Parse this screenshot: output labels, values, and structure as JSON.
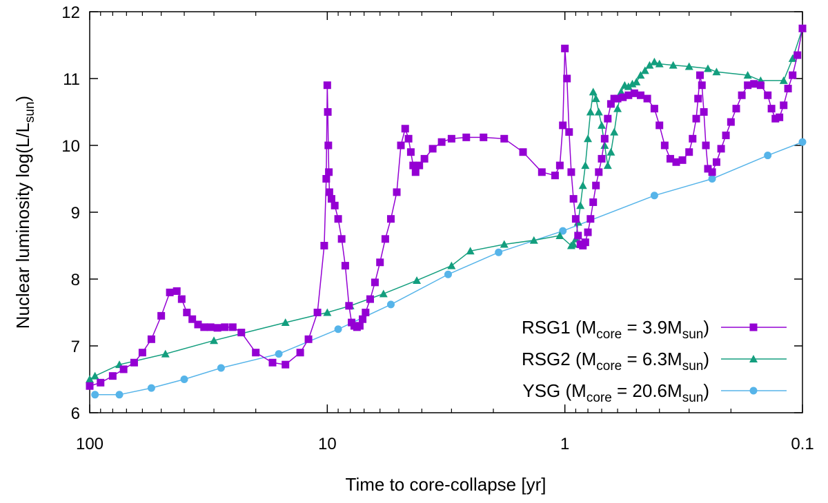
{
  "chart_data": {
    "type": "line",
    "xscale": "log",
    "x_reversed": true,
    "xlabel": "Time to core-collapse [yr]",
    "ylabel": {
      "main": "Nuclear luminosity  log(L/L",
      "sub": "sun",
      "close": ")"
    },
    "xlim": [
      100,
      0.1
    ],
    "ylim": [
      6,
      12
    ],
    "xticks": [
      {
        "value": 100,
        "label": "100"
      },
      {
        "value": 10,
        "label": "10"
      },
      {
        "value": 1,
        "label": "1"
      },
      {
        "value": 0.1,
        "label": "0.1"
      }
    ],
    "yticks": [
      {
        "value": 6,
        "label": "6"
      },
      {
        "value": 7,
        "label": "7"
      },
      {
        "value": 8,
        "label": "8"
      },
      {
        "value": 9,
        "label": "9"
      },
      {
        "value": 10,
        "label": "10"
      },
      {
        "value": 11,
        "label": "11"
      },
      {
        "value": 12,
        "label": "12"
      }
    ],
    "legend_position": "bottom-right",
    "series": [
      {
        "name": "RSG1",
        "legend": {
          "pre": "RSG1 (M",
          "sub1": "core",
          "mid": " = 3.9M",
          "sub2": "sun",
          "post": ")"
        },
        "color": "#9400d3",
        "marker": "square",
        "x": [
          100,
          90,
          80,
          72,
          65,
          60,
          55,
          50,
          46,
          43,
          41,
          39,
          37,
          35,
          33,
          31,
          29,
          27,
          25,
          23,
          20,
          17,
          15,
          13,
          12,
          11,
          10.3,
          10.1,
          10,
          9.95,
          9.9,
          9.85,
          9.8,
          9.6,
          9.3,
          9.0,
          8.7,
          8.4,
          8.1,
          7.9,
          7.7,
          7.5,
          7.3,
          7.1,
          6.9,
          6.6,
          6.3,
          6.0,
          5.7,
          5.4,
          5.1,
          4.9,
          4.7,
          4.55,
          4.45,
          4.35,
          4.25,
          4.1,
          3.9,
          3.6,
          3.3,
          3.0,
          2.6,
          2.2,
          1.8,
          1.5,
          1.25,
          1.1,
          1.05,
          1.02,
          1.0,
          0.98,
          0.96,
          0.94,
          0.92,
          0.9,
          0.88,
          0.86,
          0.84,
          0.82,
          0.8,
          0.78,
          0.76,
          0.74,
          0.72,
          0.7,
          0.68,
          0.66,
          0.64,
          0.62,
          0.6,
          0.57,
          0.54,
          0.51,
          0.48,
          0.45,
          0.42,
          0.4,
          0.38,
          0.36,
          0.34,
          0.32,
          0.3,
          0.29,
          0.28,
          0.275,
          0.27,
          0.265,
          0.26,
          0.255,
          0.25,
          0.24,
          0.23,
          0.22,
          0.21,
          0.2,
          0.19,
          0.18,
          0.17,
          0.16,
          0.15,
          0.14,
          0.135,
          0.13,
          0.125,
          0.12,
          0.115,
          0.11,
          0.105,
          0.1
        ],
        "y": [
          6.4,
          6.45,
          6.55,
          6.65,
          6.75,
          6.9,
          7.1,
          7.45,
          7.8,
          7.82,
          7.7,
          7.5,
          7.4,
          7.32,
          7.28,
          7.28,
          7.27,
          7.28,
          7.28,
          7.2,
          6.9,
          6.75,
          6.72,
          6.9,
          7.1,
          7.5,
          8.5,
          9.5,
          10.9,
          10.5,
          10.0,
          9.6,
          9.3,
          9.2,
          9.1,
          8.9,
          8.6,
          8.2,
          7.6,
          7.35,
          7.3,
          7.28,
          7.3,
          7.4,
          7.5,
          7.7,
          7.95,
          8.25,
          8.6,
          8.9,
          9.3,
          10.0,
          10.25,
          10.1,
          9.9,
          9.7,
          9.6,
          9.7,
          9.8,
          9.95,
          10.05,
          10.1,
          10.12,
          10.12,
          10.1,
          9.9,
          9.6,
          9.55,
          9.7,
          10.3,
          11.45,
          11.0,
          10.2,
          9.6,
          9.2,
          8.9,
          8.65,
          8.52,
          8.5,
          8.55,
          8.7,
          8.9,
          9.15,
          9.4,
          9.6,
          9.8,
          10.1,
          10.4,
          10.62,
          10.7,
          10.7,
          10.72,
          10.75,
          10.78,
          10.75,
          10.7,
          10.55,
          10.3,
          10.0,
          9.8,
          9.75,
          9.78,
          9.9,
          10.1,
          10.4,
          10.7,
          11.05,
          10.9,
          10.5,
          10.0,
          9.65,
          9.6,
          9.75,
          9.95,
          10.15,
          10.35,
          10.55,
          10.75,
          10.9,
          10.92,
          10.9,
          10.75,
          10.55,
          10.4,
          10.42,
          10.6,
          10.85,
          11.05,
          11.35,
          11.75
        ]
      },
      {
        "name": "RSG2",
        "legend": {
          "pre": "RSG2 (M",
          "sub1": "core",
          "mid": " = 6.3M",
          "sub2": "sun",
          "post": ")"
        },
        "color": "#139e7e",
        "marker": "triangle",
        "x": [
          100,
          95,
          75,
          48,
          30,
          15,
          10,
          8,
          5.8,
          4.2,
          3.0,
          2.5,
          1.8,
          1.35,
          1.05,
          0.94,
          0.92,
          0.9,
          0.88,
          0.86,
          0.84,
          0.82,
          0.8,
          0.78,
          0.76,
          0.74,
          0.72,
          0.7,
          0.68,
          0.66,
          0.64,
          0.62,
          0.6,
          0.58,
          0.56,
          0.54,
          0.52,
          0.5,
          0.48,
          0.46,
          0.44,
          0.42,
          0.4,
          0.35,
          0.3,
          0.25,
          0.23,
          0.17,
          0.15,
          0.12,
          0.11,
          0.1
        ],
        "y": [
          6.5,
          6.55,
          6.72,
          6.88,
          7.08,
          7.35,
          7.5,
          7.6,
          7.78,
          7.98,
          8.2,
          8.42,
          8.52,
          8.58,
          8.65,
          8.5,
          8.52,
          8.6,
          8.85,
          9.1,
          9.4,
          9.7,
          10.1,
          10.5,
          10.8,
          10.7,
          10.5,
          10.3,
          10.0,
          9.7,
          9.9,
          10.2,
          10.55,
          10.8,
          10.9,
          10.88,
          10.92,
          10.95,
          11.05,
          11.12,
          11.2,
          11.25,
          11.22,
          11.2,
          11.18,
          11.15,
          11.1,
          11.05,
          10.97,
          10.97,
          11.3,
          11.75
        ]
      },
      {
        "name": "YSG",
        "legend": {
          "pre": "YSG (M",
          "sub1": "core",
          "mid": " = 20.6M",
          "sub2": "sun",
          "post": ")"
        },
        "color": "#56b4e9",
        "marker": "circle",
        "x": [
          95,
          75,
          55,
          40,
          28,
          16,
          9,
          5.4,
          3.1,
          1.9,
          1.02,
          0.42,
          0.24,
          0.14,
          0.1
        ],
        "y": [
          6.27,
          6.27,
          6.37,
          6.5,
          6.67,
          6.88,
          7.25,
          7.62,
          8.07,
          8.4,
          8.72,
          9.25,
          9.5,
          9.85,
          10.05
        ]
      }
    ]
  }
}
